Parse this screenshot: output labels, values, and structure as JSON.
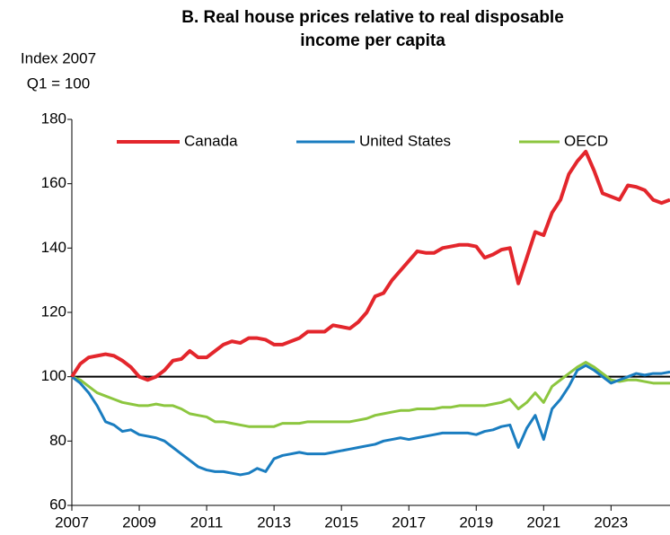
{
  "chart_data": {
    "type": "line",
    "title": [
      "B. Real house prices relative to real disposable",
      "income per capita"
    ],
    "y_label": [
      "Index 2007",
      "Q1 = 100"
    ],
    "x": [
      2007,
      2007.25,
      2007.5,
      2007.75,
      2008,
      2008.25,
      2008.5,
      2008.75,
      2009,
      2009.25,
      2009.5,
      2009.75,
      2010,
      2010.25,
      2010.5,
      2010.75,
      2011,
      2011.25,
      2011.5,
      2011.75,
      2012,
      2012.25,
      2012.5,
      2012.75,
      2013,
      2013.25,
      2013.5,
      2013.75,
      2014,
      2014.25,
      2014.5,
      2014.75,
      2015,
      2015.25,
      2015.5,
      2015.75,
      2016,
      2016.25,
      2016.5,
      2016.75,
      2017,
      2017.25,
      2017.5,
      2017.75,
      2018,
      2018.25,
      2018.5,
      2018.75,
      2019,
      2019.25,
      2019.5,
      2019.75,
      2020,
      2020.25,
      2020.5,
      2020.75,
      2021,
      2021.25,
      2021.5,
      2021.75,
      2022,
      2022.25,
      2022.5,
      2022.75,
      2023,
      2023.25,
      2023.5,
      2023.75,
      2024,
      2024.25,
      2024.5,
      2024.75
    ],
    "series": [
      {
        "name": "Canada",
        "color": "#e3262c",
        "values": [
          100,
          104,
          106,
          106.5,
          107,
          106.5,
          105,
          103,
          100,
          99,
          100,
          102,
          105,
          105.5,
          108,
          106,
          106,
          108,
          110,
          111,
          110.5,
          112,
          112,
          111.5,
          110,
          110,
          111,
          112,
          114,
          114,
          114,
          116,
          115.5,
          115,
          117,
          120,
          125,
          126,
          130,
          133,
          136,
          139,
          138.5,
          138.5,
          140,
          140.5,
          141,
          141,
          140.5,
          137,
          138,
          139.5,
          140,
          129,
          137,
          145,
          144,
          151,
          155,
          163,
          167,
          170,
          164,
          157,
          156,
          155,
          159.5,
          159,
          158,
          155,
          154,
          155
        ]
      },
      {
        "name": "United States",
        "color": "#1a7dc0",
        "values": [
          100,
          98,
          95,
          91,
          86,
          85,
          83,
          83.5,
          82,
          81.5,
          81,
          80,
          78,
          76,
          74,
          72,
          71,
          70.5,
          70.5,
          70,
          69.5,
          70,
          71.5,
          70.5,
          74.5,
          75.5,
          76,
          76.5,
          76,
          76,
          76,
          76.5,
          77,
          77.5,
          78,
          78.5,
          79,
          80,
          80.5,
          81,
          80.5,
          81,
          81.5,
          82,
          82.5,
          82.5,
          82.5,
          82.5,
          82,
          83,
          83.5,
          84.5,
          85,
          78,
          84,
          88,
          80.5,
          90,
          93,
          97,
          102,
          103.5,
          102,
          100,
          98,
          99,
          100,
          101,
          100.5,
          101,
          101,
          101.5
        ]
      },
      {
        "name": "OECD",
        "color": "#8cc63f",
        "values": [
          100,
          99,
          97,
          95,
          94,
          93,
          92,
          91.5,
          91,
          91,
          91.5,
          91,
          91,
          90,
          88.5,
          88,
          87.5,
          86,
          86,
          85.5,
          85,
          84.5,
          84.5,
          84.5,
          84.5,
          85.5,
          85.5,
          85.5,
          86,
          86,
          86,
          86,
          86,
          86,
          86.5,
          87,
          88,
          88.5,
          89,
          89.5,
          89.5,
          90,
          90,
          90,
          90.5,
          90.5,
          91,
          91,
          91,
          91,
          91.5,
          92,
          93,
          90,
          92,
          95,
          92,
          97,
          99,
          101,
          103,
          104.5,
          103,
          101,
          99,
          98.5,
          99,
          99,
          98.5,
          98,
          98,
          98
        ]
      }
    ],
    "hline": 100,
    "xlim": [
      2007,
      2024.75
    ],
    "xticks": [
      2007,
      2009,
      2011,
      2013,
      2015,
      2017,
      2019,
      2021,
      2023
    ],
    "ylim": [
      60,
      180
    ],
    "yticks": [
      60,
      80,
      100,
      120,
      140,
      160,
      180
    ],
    "grid": false,
    "legend": "top"
  }
}
